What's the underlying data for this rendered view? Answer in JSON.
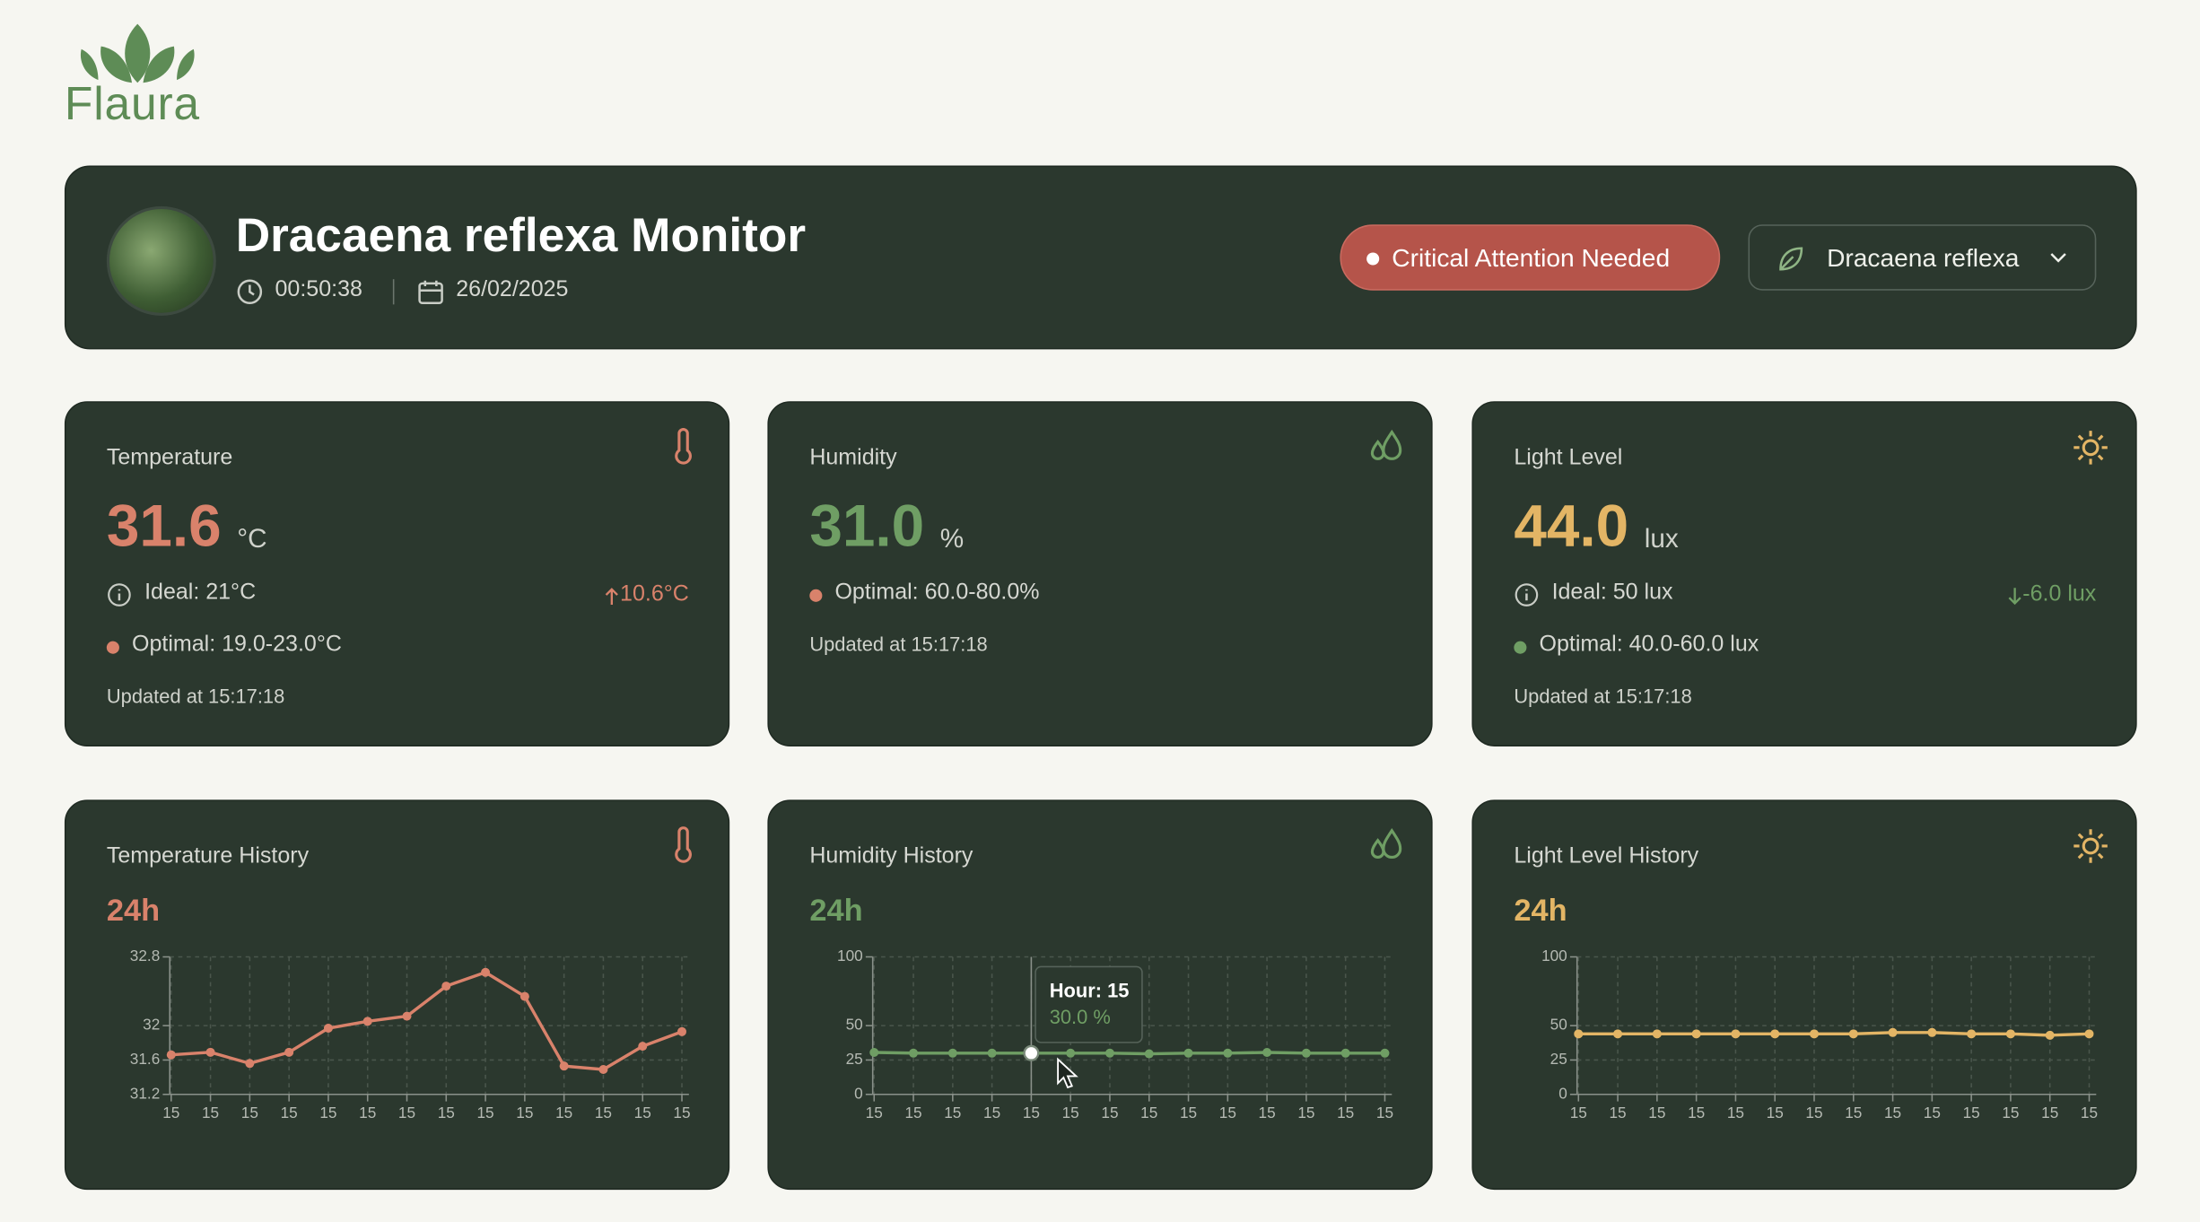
{
  "brand": "Flaura",
  "header": {
    "title": "Dracaena reflexa Monitor",
    "time": "00:50:38",
    "date": "26/02/2025",
    "status": "Critical Attention Needed",
    "plant_select": "Dracaena reflexa"
  },
  "metrics": [
    {
      "label": "Temperature",
      "value": "31.6",
      "unit": "°C",
      "ideal": "Ideal: 21°C",
      "delta": "10.6°C",
      "optimal": "Optimal: 19.0-23.0°C",
      "updated": "Updated at 15:17:18"
    },
    {
      "label": "Humidity",
      "value": "31.0",
      "unit": "%",
      "optimal": "Optimal: 60.0-80.0%",
      "updated": "Updated at 15:17:18"
    },
    {
      "label": "Light Level",
      "value": "44.0",
      "unit": "lux",
      "ideal": "Ideal: 50 lux",
      "delta": "-6.0 lux",
      "optimal": "Optimal: 40.0-60.0 lux",
      "updated": "Updated at 15:17:18"
    }
  ],
  "chart_data": [
    {
      "type": "line",
      "title": "Temperature History",
      "subtitle": "24h",
      "color": "#d9826b",
      "grid": true,
      "categories": [
        "15",
        "15",
        "15",
        "15",
        "15",
        "15",
        "15",
        "15",
        "15",
        "15",
        "15",
        "15",
        "15",
        "15"
      ],
      "values": [
        31.66,
        31.69,
        31.56,
        31.69,
        31.97,
        32.05,
        32.11,
        32.46,
        32.62,
        32.34,
        31.53,
        31.49,
        31.76,
        31.93
      ],
      "ylim": [
        31.2,
        32.8
      ],
      "yticks": [
        31.2,
        31.6,
        32,
        32.8
      ]
    },
    {
      "type": "line",
      "title": "Humidity History",
      "subtitle": "24h",
      "color": "#6f9e64",
      "grid": true,
      "categories": [
        "15",
        "15",
        "15",
        "15",
        "15",
        "15",
        "15",
        "15",
        "15",
        "15",
        "15",
        "15",
        "15",
        "15"
      ],
      "values": [
        30.5,
        30,
        30,
        30,
        30,
        30,
        30,
        29.5,
        30,
        30,
        30.5,
        30,
        30,
        30
      ],
      "ylim": [
        0,
        100
      ],
      "yticks": [
        0,
        25,
        50,
        100
      ],
      "tooltip": {
        "index": 4,
        "title": "Hour: 15",
        "value": "30.0 %"
      }
    },
    {
      "type": "line",
      "title": "Light Level History",
      "subtitle": "24h",
      "color": "#e3b565",
      "grid": true,
      "categories": [
        "15",
        "15",
        "15",
        "15",
        "15",
        "15",
        "15",
        "15",
        "15",
        "15",
        "15",
        "15",
        "15",
        "15"
      ],
      "values": [
        44,
        44,
        44,
        44,
        44,
        44,
        44,
        44,
        45,
        45,
        44,
        44,
        43,
        44
      ],
      "ylim": [
        0,
        100
      ],
      "yticks": [
        0,
        25,
        50,
        100
      ]
    }
  ]
}
